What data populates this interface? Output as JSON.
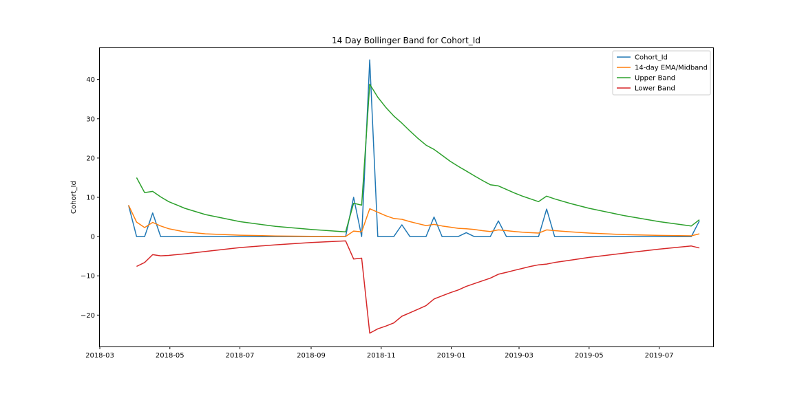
{
  "chart_data": {
    "type": "line",
    "title": "14 Day Bollinger Band for Cohort_Id",
    "xlabel": "",
    "ylabel": "Cohort_Id",
    "xlim": [
      "2018-03-01",
      "2019-08-17"
    ],
    "ylim": [
      -28,
      48
    ],
    "x_ticks": [
      "2018-03-01",
      "2018-05-01",
      "2018-07-01",
      "2018-09-01",
      "2018-11-01",
      "2019-01-01",
      "2019-03-01",
      "2019-05-01",
      "2019-07-01"
    ],
    "x_tick_labels": [
      "2018-03",
      "2018-05",
      "2018-07",
      "2018-09",
      "2018-11",
      "2019-01",
      "2019-03",
      "2019-05",
      "2019-07"
    ],
    "y_ticks": [
      -20,
      -10,
      0,
      10,
      20,
      30,
      40
    ],
    "y_tick_labels": [
      "−20",
      "−10",
      "0",
      "10",
      "20",
      "30",
      "40"
    ],
    "grid": false,
    "legend_position": "top-right",
    "series": [
      {
        "name": "Cohort_Id",
        "color": "#1f77b4",
        "points": [
          [
            "2018-03-26",
            8
          ],
          [
            "2018-04-02",
            0
          ],
          [
            "2018-04-09",
            0
          ],
          [
            "2018-04-16",
            6
          ],
          [
            "2018-04-23",
            0
          ],
          [
            "2018-07-15",
            0
          ],
          [
            "2018-10-01",
            0
          ],
          [
            "2018-10-08",
            10
          ],
          [
            "2018-10-15",
            0
          ],
          [
            "2018-10-22",
            45
          ],
          [
            "2018-10-29",
            0
          ],
          [
            "2018-11-12",
            0
          ],
          [
            "2018-11-19",
            3
          ],
          [
            "2018-11-26",
            0
          ],
          [
            "2018-12-10",
            0
          ],
          [
            "2018-12-17",
            5
          ],
          [
            "2018-12-24",
            0
          ],
          [
            "2019-01-07",
            0
          ],
          [
            "2019-01-14",
            1
          ],
          [
            "2019-01-21",
            0
          ],
          [
            "2019-02-04",
            0
          ],
          [
            "2019-02-11",
            4
          ],
          [
            "2019-02-18",
            0
          ],
          [
            "2019-03-18",
            0
          ],
          [
            "2019-03-25",
            7
          ],
          [
            "2019-04-01",
            0
          ],
          [
            "2019-07-29",
            0
          ],
          [
            "2019-08-05",
            4
          ]
        ]
      },
      {
        "name": "14-day EMA/Midband",
        "color": "#ff7f0e",
        "points": [
          [
            "2018-03-26",
            8
          ],
          [
            "2018-04-02",
            3.7
          ],
          [
            "2018-04-09",
            2.3
          ],
          [
            "2018-04-16",
            3.6
          ],
          [
            "2018-04-23",
            2.7
          ],
          [
            "2018-04-30",
            2.0
          ],
          [
            "2018-05-14",
            1.2
          ],
          [
            "2018-06-01",
            0.7
          ],
          [
            "2018-07-01",
            0.35
          ],
          [
            "2018-08-01",
            0.15
          ],
          [
            "2018-09-01",
            0.05
          ],
          [
            "2018-10-01",
            0.02
          ],
          [
            "2018-10-08",
            1.4
          ],
          [
            "2018-10-15",
            1.2
          ],
          [
            "2018-10-22",
            7.1
          ],
          [
            "2018-10-29",
            6.2
          ],
          [
            "2018-11-05",
            5.3
          ],
          [
            "2018-11-12",
            4.6
          ],
          [
            "2018-11-19",
            4.4
          ],
          [
            "2018-11-26",
            3.8
          ],
          [
            "2018-12-03",
            3.3
          ],
          [
            "2018-12-10",
            2.8
          ],
          [
            "2018-12-17",
            3.1
          ],
          [
            "2018-12-24",
            2.7
          ],
          [
            "2018-12-31",
            2.4
          ],
          [
            "2019-01-07",
            2.1
          ],
          [
            "2019-01-14",
            2.0
          ],
          [
            "2019-01-21",
            1.8
          ],
          [
            "2019-01-28",
            1.5
          ],
          [
            "2019-02-04",
            1.3
          ],
          [
            "2019-02-11",
            1.7
          ],
          [
            "2019-02-18",
            1.5
          ],
          [
            "2019-02-25",
            1.3
          ],
          [
            "2019-03-04",
            1.1
          ],
          [
            "2019-03-18",
            0.9
          ],
          [
            "2019-03-25",
            1.7
          ],
          [
            "2019-04-01",
            1.5
          ],
          [
            "2019-04-15",
            1.2
          ],
          [
            "2019-05-01",
            0.9
          ],
          [
            "2019-06-01",
            0.5
          ],
          [
            "2019-07-01",
            0.3
          ],
          [
            "2019-07-29",
            0.2
          ],
          [
            "2019-08-05",
            0.7
          ]
        ]
      },
      {
        "name": "Upper Band",
        "color": "#2ca02c",
        "points": [
          [
            "2018-04-02",
            15.0
          ],
          [
            "2018-04-09",
            11.2
          ],
          [
            "2018-04-16",
            11.5
          ],
          [
            "2018-04-23",
            10.1
          ],
          [
            "2018-04-30",
            8.9
          ],
          [
            "2018-05-14",
            7.2
          ],
          [
            "2018-06-01",
            5.6
          ],
          [
            "2018-07-01",
            3.8
          ],
          [
            "2018-08-01",
            2.6
          ],
          [
            "2018-09-01",
            1.8
          ],
          [
            "2018-10-01",
            1.2
          ],
          [
            "2018-10-08",
            8.5
          ],
          [
            "2018-10-15",
            8.0
          ],
          [
            "2018-10-22",
            38.8
          ],
          [
            "2018-10-29",
            35.5
          ],
          [
            "2018-11-05",
            32.9
          ],
          [
            "2018-11-12",
            30.7
          ],
          [
            "2018-11-19",
            28.9
          ],
          [
            "2018-11-26",
            26.9
          ],
          [
            "2018-12-03",
            25.0
          ],
          [
            "2018-12-10",
            23.3
          ],
          [
            "2018-12-17",
            22.2
          ],
          [
            "2018-12-24",
            20.7
          ],
          [
            "2018-12-31",
            19.2
          ],
          [
            "2019-01-07",
            17.9
          ],
          [
            "2019-01-14",
            16.7
          ],
          [
            "2019-01-21",
            15.5
          ],
          [
            "2019-01-28",
            14.3
          ],
          [
            "2019-02-04",
            13.2
          ],
          [
            "2019-02-11",
            12.9
          ],
          [
            "2019-02-18",
            12.0
          ],
          [
            "2019-02-25",
            11.1
          ],
          [
            "2019-03-04",
            10.3
          ],
          [
            "2019-03-11",
            9.6
          ],
          [
            "2019-03-18",
            8.9
          ],
          [
            "2019-03-25",
            10.3
          ],
          [
            "2019-04-01",
            9.6
          ],
          [
            "2019-04-15",
            8.4
          ],
          [
            "2019-05-01",
            7.2
          ],
          [
            "2019-06-01",
            5.3
          ],
          [
            "2019-07-01",
            3.8
          ],
          [
            "2019-07-29",
            2.7
          ],
          [
            "2019-08-05",
            4.3
          ]
        ]
      },
      {
        "name": "Lower Band",
        "color": "#d62728",
        "points": [
          [
            "2018-04-02",
            -7.6
          ],
          [
            "2018-04-09",
            -6.6
          ],
          [
            "2018-04-16",
            -4.6
          ],
          [
            "2018-04-23",
            -4.9
          ],
          [
            "2018-04-30",
            -4.8
          ],
          [
            "2018-05-14",
            -4.4
          ],
          [
            "2018-06-01",
            -3.8
          ],
          [
            "2018-07-01",
            -2.8
          ],
          [
            "2018-08-01",
            -2.1
          ],
          [
            "2018-09-01",
            -1.5
          ],
          [
            "2018-10-01",
            -1.1
          ],
          [
            "2018-10-08",
            -5.7
          ],
          [
            "2018-10-15",
            -5.5
          ],
          [
            "2018-10-22",
            -24.6
          ],
          [
            "2018-10-29",
            -23.5
          ],
          [
            "2018-11-05",
            -22.8
          ],
          [
            "2018-11-12",
            -22.0
          ],
          [
            "2018-11-19",
            -20.3
          ],
          [
            "2018-11-26",
            -19.4
          ],
          [
            "2018-12-03",
            -18.5
          ],
          [
            "2018-12-10",
            -17.6
          ],
          [
            "2018-12-17",
            -15.9
          ],
          [
            "2018-12-24",
            -15.1
          ],
          [
            "2018-12-31",
            -14.3
          ],
          [
            "2019-01-07",
            -13.6
          ],
          [
            "2019-01-14",
            -12.7
          ],
          [
            "2019-01-21",
            -12.0
          ],
          [
            "2019-01-28",
            -11.3
          ],
          [
            "2019-02-04",
            -10.6
          ],
          [
            "2019-02-11",
            -9.6
          ],
          [
            "2019-02-18",
            -9.1
          ],
          [
            "2019-02-25",
            -8.6
          ],
          [
            "2019-03-04",
            -8.1
          ],
          [
            "2019-03-11",
            -7.6
          ],
          [
            "2019-03-18",
            -7.2
          ],
          [
            "2019-03-25",
            -7.0
          ],
          [
            "2019-04-01",
            -6.6
          ],
          [
            "2019-04-15",
            -6.0
          ],
          [
            "2019-05-01",
            -5.3
          ],
          [
            "2019-06-01",
            -4.2
          ],
          [
            "2019-07-01",
            -3.2
          ],
          [
            "2019-07-29",
            -2.4
          ],
          [
            "2019-08-05",
            -2.9
          ]
        ]
      }
    ]
  }
}
